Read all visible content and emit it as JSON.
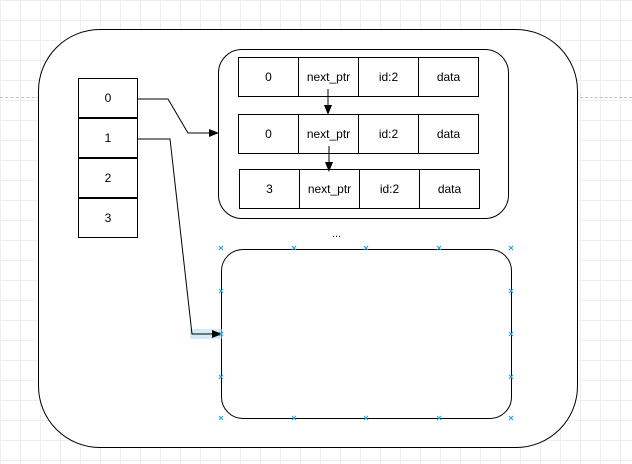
{
  "index_array": [
    "0",
    "1",
    "2",
    "3"
  ],
  "nodes": [
    [
      "0",
      "next_ptr",
      "id:2",
      "data"
    ],
    [
      "0",
      "next_ptr",
      "id:2",
      "data"
    ],
    [
      "3",
      "next_ptr",
      "id:2",
      "data"
    ]
  ],
  "ellipsis": "...",
  "colors": {
    "stroke": "#000000",
    "selection_handle": "#29a6e0",
    "selection_highlight": "#b3d9f2"
  }
}
